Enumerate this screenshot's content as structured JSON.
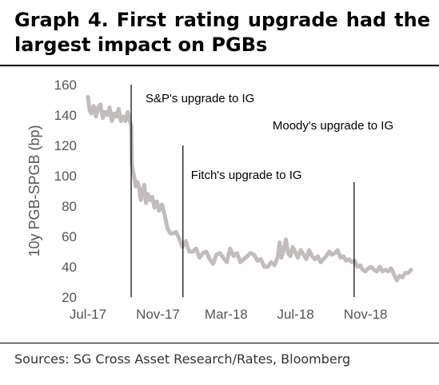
{
  "header": {
    "title": "Graph 4. First rating upgrade had the largest impact on PGBs"
  },
  "footer": {
    "source": "Sources: SG Cross Asset Research/Rates, Bloomberg"
  },
  "chart_data": {
    "type": "line",
    "title": "Graph 4. First rating upgrade had the largest impact on PGBs",
    "xlabel": "",
    "ylabel": "10y PGB-SPGB (bp)",
    "ylim": [
      20,
      160
    ],
    "yticks": [
      20,
      40,
      60,
      80,
      100,
      120,
      140,
      160
    ],
    "xlim": [
      "2017-07-01",
      "2019-01-20"
    ],
    "xticks": [
      {
        "date": "2017-07-01",
        "label": "Jul-17"
      },
      {
        "date": "2017-11-01",
        "label": "Nov-17"
      },
      {
        "date": "2018-03-01",
        "label": "Mar-18"
      },
      {
        "date": "2018-07-01",
        "label": "Jul-18"
      },
      {
        "date": "2018-11-01",
        "label": "Nov-18"
      }
    ],
    "grid": false,
    "line_color": "#c2bcbc",
    "series": [
      {
        "name": "",
        "points": [
          [
            "2017-07-01",
            152
          ],
          [
            "2017-07-04",
            143
          ],
          [
            "2017-07-07",
            141
          ],
          [
            "2017-07-11",
            146
          ],
          [
            "2017-07-15",
            139
          ],
          [
            "2017-07-19",
            145
          ],
          [
            "2017-07-23",
            147
          ],
          [
            "2017-07-27",
            138
          ],
          [
            "2017-07-31",
            142
          ],
          [
            "2017-08-04",
            140
          ],
          [
            "2017-08-08",
            145
          ],
          [
            "2017-08-12",
            136
          ],
          [
            "2017-08-16",
            141
          ],
          [
            "2017-08-20",
            139
          ],
          [
            "2017-08-24",
            144
          ],
          [
            "2017-08-28",
            136
          ],
          [
            "2017-09-01",
            139
          ],
          [
            "2017-09-05",
            136
          ],
          [
            "2017-09-09",
            142
          ],
          [
            "2017-09-12",
            137
          ],
          [
            "2017-09-15",
            133
          ],
          [
            "2017-09-16",
            108
          ],
          [
            "2017-09-18",
            103
          ],
          [
            "2017-09-20",
            100
          ],
          [
            "2017-09-23",
            93
          ],
          [
            "2017-09-26",
            96
          ],
          [
            "2017-09-29",
            92
          ],
          [
            "2017-10-02",
            84
          ],
          [
            "2017-10-05",
            90
          ],
          [
            "2017-10-08",
            94
          ],
          [
            "2017-10-11",
            82
          ],
          [
            "2017-10-14",
            88
          ],
          [
            "2017-10-18",
            84
          ],
          [
            "2017-10-22",
            86
          ],
          [
            "2017-10-26",
            79
          ],
          [
            "2017-10-30",
            83
          ],
          [
            "2017-11-03",
            77
          ],
          [
            "2017-11-08",
            81
          ],
          [
            "2017-11-13",
            74
          ],
          [
            "2017-11-18",
            65
          ],
          [
            "2017-11-23",
            62
          ],
          [
            "2017-11-28",
            62
          ],
          [
            "2017-12-03",
            63
          ],
          [
            "2017-12-08",
            59
          ],
          [
            "2017-12-14",
            53
          ],
          [
            "2017-12-20",
            57
          ],
          [
            "2017-12-26",
            50
          ],
          [
            "2018-01-01",
            50
          ],
          [
            "2018-01-07",
            52
          ],
          [
            "2018-01-13",
            46
          ],
          [
            "2018-01-19",
            49
          ],
          [
            "2018-01-25",
            50
          ],
          [
            "2018-01-31",
            45
          ],
          [
            "2018-02-06",
            42
          ],
          [
            "2018-02-12",
            48
          ],
          [
            "2018-02-18",
            49
          ],
          [
            "2018-02-24",
            46
          ],
          [
            "2018-03-02",
            43
          ],
          [
            "2018-03-08",
            52
          ],
          [
            "2018-03-14",
            47
          ],
          [
            "2018-03-20",
            49
          ],
          [
            "2018-03-26",
            43
          ],
          [
            "2018-04-01",
            45
          ],
          [
            "2018-04-07",
            47
          ],
          [
            "2018-04-13",
            49
          ],
          [
            "2018-04-19",
            48
          ],
          [
            "2018-04-25",
            44
          ],
          [
            "2018-05-01",
            45
          ],
          [
            "2018-05-07",
            40
          ],
          [
            "2018-05-13",
            40
          ],
          [
            "2018-05-19",
            43
          ],
          [
            "2018-05-25",
            41
          ],
          [
            "2018-05-31",
            47
          ],
          [
            "2018-06-03",
            56
          ],
          [
            "2018-06-06",
            46
          ],
          [
            "2018-06-10",
            51
          ],
          [
            "2018-06-14",
            58
          ],
          [
            "2018-06-18",
            49
          ],
          [
            "2018-06-22",
            47
          ],
          [
            "2018-06-26",
            53
          ],
          [
            "2018-06-30",
            50
          ],
          [
            "2018-07-05",
            46
          ],
          [
            "2018-07-10",
            51
          ],
          [
            "2018-07-15",
            48
          ],
          [
            "2018-07-20",
            45
          ],
          [
            "2018-07-25",
            51
          ],
          [
            "2018-07-30",
            47
          ],
          [
            "2018-08-04",
            45
          ],
          [
            "2018-08-09",
            47
          ],
          [
            "2018-08-14",
            43
          ],
          [
            "2018-08-19",
            45
          ],
          [
            "2018-08-24",
            47
          ],
          [
            "2018-08-29",
            50
          ],
          [
            "2018-09-03",
            48
          ],
          [
            "2018-09-08",
            49
          ],
          [
            "2018-09-13",
            51
          ],
          [
            "2018-09-18",
            46
          ],
          [
            "2018-09-23",
            47
          ],
          [
            "2018-09-28",
            44
          ],
          [
            "2018-10-03",
            45
          ],
          [
            "2018-10-08",
            43
          ],
          [
            "2018-10-13",
            44
          ],
          [
            "2018-10-18",
            40
          ],
          [
            "2018-10-23",
            41
          ],
          [
            "2018-10-27",
            38
          ],
          [
            "2018-11-01",
            37
          ],
          [
            "2018-11-06",
            39
          ],
          [
            "2018-11-11",
            40
          ],
          [
            "2018-11-16",
            38
          ],
          [
            "2018-11-21",
            37
          ],
          [
            "2018-11-26",
            40
          ],
          [
            "2018-12-01",
            37
          ],
          [
            "2018-12-06",
            38
          ],
          [
            "2018-12-11",
            37
          ],
          [
            "2018-12-16",
            39
          ],
          [
            "2018-12-21",
            35
          ],
          [
            "2018-12-26",
            31
          ],
          [
            "2018-12-31",
            34
          ],
          [
            "2019-01-05",
            33
          ],
          [
            "2019-01-10",
            36
          ],
          [
            "2019-01-15",
            36
          ],
          [
            "2019-01-20",
            38
          ]
        ]
      }
    ],
    "annotations": [
      {
        "date": "2017-09-15",
        "label": "S&P's upgrade to IG"
      },
      {
        "date": "2017-12-15",
        "label": "Fitch's upgrade to IG"
      },
      {
        "date": "2018-10-12",
        "label": "Moody's upgrade to IG"
      }
    ]
  }
}
